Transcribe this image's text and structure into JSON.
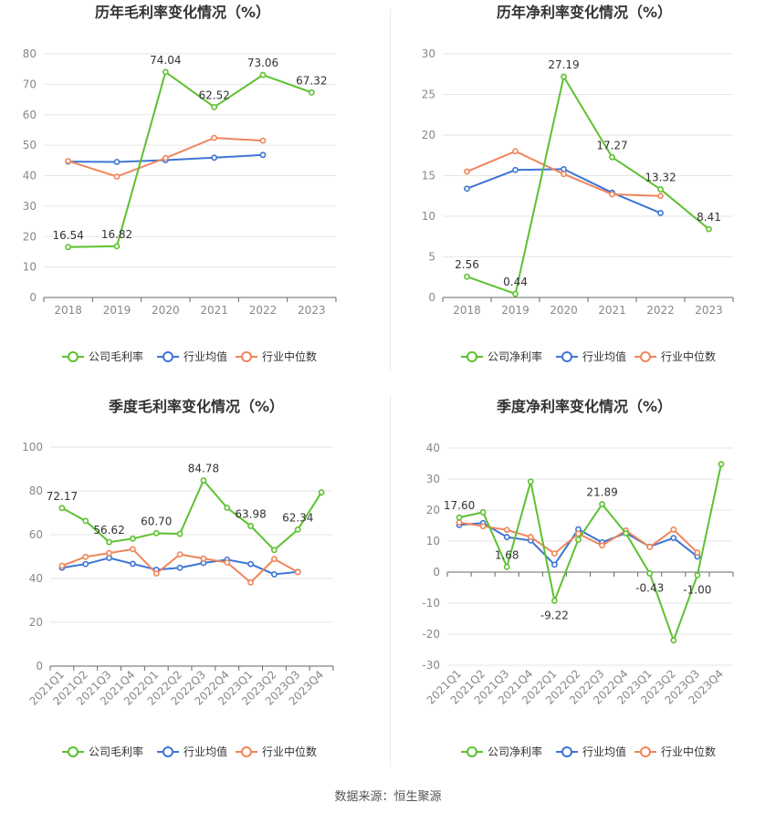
{
  "footer": {
    "source": "数据来源：恒生聚源"
  },
  "chart_data": [
    {
      "type": "line",
      "title": "历年毛利率变化情况（%）",
      "categories": [
        "2018",
        "2019",
        "2020",
        "2021",
        "2022",
        "2023"
      ],
      "ylim": [
        0,
        80
      ],
      "yticks": [
        0,
        10,
        20,
        30,
        40,
        50,
        60,
        70,
        80
      ],
      "legend_position": "bottom",
      "series": [
        {
          "name": "公司毛利率",
          "color": "#5cc130",
          "values": [
            16.54,
            16.82,
            74.04,
            62.52,
            73.06,
            67.32
          ],
          "labels": [
            "16.54",
            "16.82",
            "74.04",
            "62.52",
            "73.06",
            "67.32"
          ]
        },
        {
          "name": "行业均值",
          "color": "#3d74d6",
          "values": [
            44.6,
            44.5,
            45.1,
            45.9,
            46.8,
            null
          ]
        },
        {
          "name": "行业中位数",
          "color": "#f0855a",
          "values": [
            44.8,
            39.7,
            45.8,
            52.4,
            51.5,
            null
          ]
        }
      ]
    },
    {
      "type": "line",
      "title": "历年净利率变化情况（%）",
      "categories": [
        "2018",
        "2019",
        "2020",
        "2021",
        "2022",
        "2023"
      ],
      "ylim": [
        0,
        30
      ],
      "yticks": [
        0,
        5,
        10,
        15,
        20,
        25,
        30
      ],
      "legend_position": "bottom",
      "series": [
        {
          "name": "公司净利率",
          "color": "#5cc130",
          "values": [
            2.56,
            0.44,
            27.19,
            17.27,
            13.32,
            8.41
          ],
          "labels": [
            "2.56",
            "0.44",
            "27.19",
            "17.27",
            "13.32",
            "8.41"
          ]
        },
        {
          "name": "行业均值",
          "color": "#3d74d6",
          "values": [
            13.4,
            15.7,
            15.8,
            12.9,
            10.4,
            null
          ]
        },
        {
          "name": "行业中位数",
          "color": "#f0855a",
          "values": [
            15.5,
            18.0,
            15.2,
            12.7,
            12.5,
            null
          ]
        }
      ]
    },
    {
      "type": "line",
      "title": "季度毛利率变化情况（%）",
      "categories": [
        "2021Q1",
        "2021Q2",
        "2021Q3",
        "2021Q4",
        "2022Q1",
        "2022Q2",
        "2022Q3",
        "2022Q4",
        "2023Q1",
        "2023Q2",
        "2023Q3",
        "2023Q4"
      ],
      "ylim": [
        0,
        100
      ],
      "yticks": [
        0,
        20,
        40,
        60,
        80,
        100
      ],
      "legend_position": "bottom",
      "series": [
        {
          "name": "公司毛利率",
          "color": "#5cc130",
          "values": [
            72.17,
            66.3,
            56.62,
            58.2,
            60.7,
            60.4,
            84.78,
            72.3,
            63.98,
            53.0,
            62.34,
            79.3
          ],
          "labels": [
            "72.17",
            null,
            "56.62",
            null,
            "60.70",
            null,
            "84.78",
            null,
            "63.98",
            null,
            "62.34",
            null
          ]
        },
        {
          "name": "行业均值",
          "color": "#3d74d6",
          "values": [
            44.9,
            46.6,
            49.4,
            46.7,
            44.0,
            44.9,
            47.1,
            48.6,
            46.6,
            41.9,
            43.0,
            null
          ]
        },
        {
          "name": "行业中位数",
          "color": "#f0855a",
          "values": [
            45.8,
            49.9,
            51.6,
            53.4,
            42.3,
            51.0,
            49.1,
            47.3,
            38.2,
            48.9,
            42.9,
            null
          ]
        }
      ]
    },
    {
      "type": "line",
      "title": "季度净利率变化情况（%）",
      "categories": [
        "2021Q1",
        "2021Q2",
        "2021Q3",
        "2021Q4",
        "2022Q1",
        "2022Q2",
        "2022Q3",
        "2022Q4",
        "2023Q1",
        "2023Q2",
        "2023Q3",
        "2023Q4"
      ],
      "ylim": [
        -30,
        40
      ],
      "yticks": [
        -30,
        -20,
        -10,
        0,
        10,
        20,
        30,
        40
      ],
      "legend_position": "bottom",
      "series": [
        {
          "name": "公司净利率",
          "color": "#5cc130",
          "values": [
            17.6,
            19.3,
            1.68,
            29.2,
            -9.22,
            10.5,
            21.89,
            12.5,
            -0.43,
            -22.0,
            -1.0,
            34.8
          ],
          "labels": [
            "17.60",
            null,
            "1.68",
            null,
            "-9.22",
            null,
            "21.89",
            null,
            "-0.43",
            null,
            "-1.00",
            null
          ]
        },
        {
          "name": "行业均值",
          "color": "#3d74d6",
          "values": [
            15.2,
            15.8,
            11.3,
            10.2,
            2.4,
            13.8,
            9.6,
            12.6,
            8.2,
            11.0,
            5.0,
            null
          ]
        },
        {
          "name": "行业中位数",
          "color": "#f0855a",
          "values": [
            16.0,
            14.8,
            13.6,
            11.3,
            6.0,
            12.4,
            8.6,
            13.4,
            8.1,
            13.7,
            6.3,
            null
          ]
        }
      ]
    }
  ]
}
